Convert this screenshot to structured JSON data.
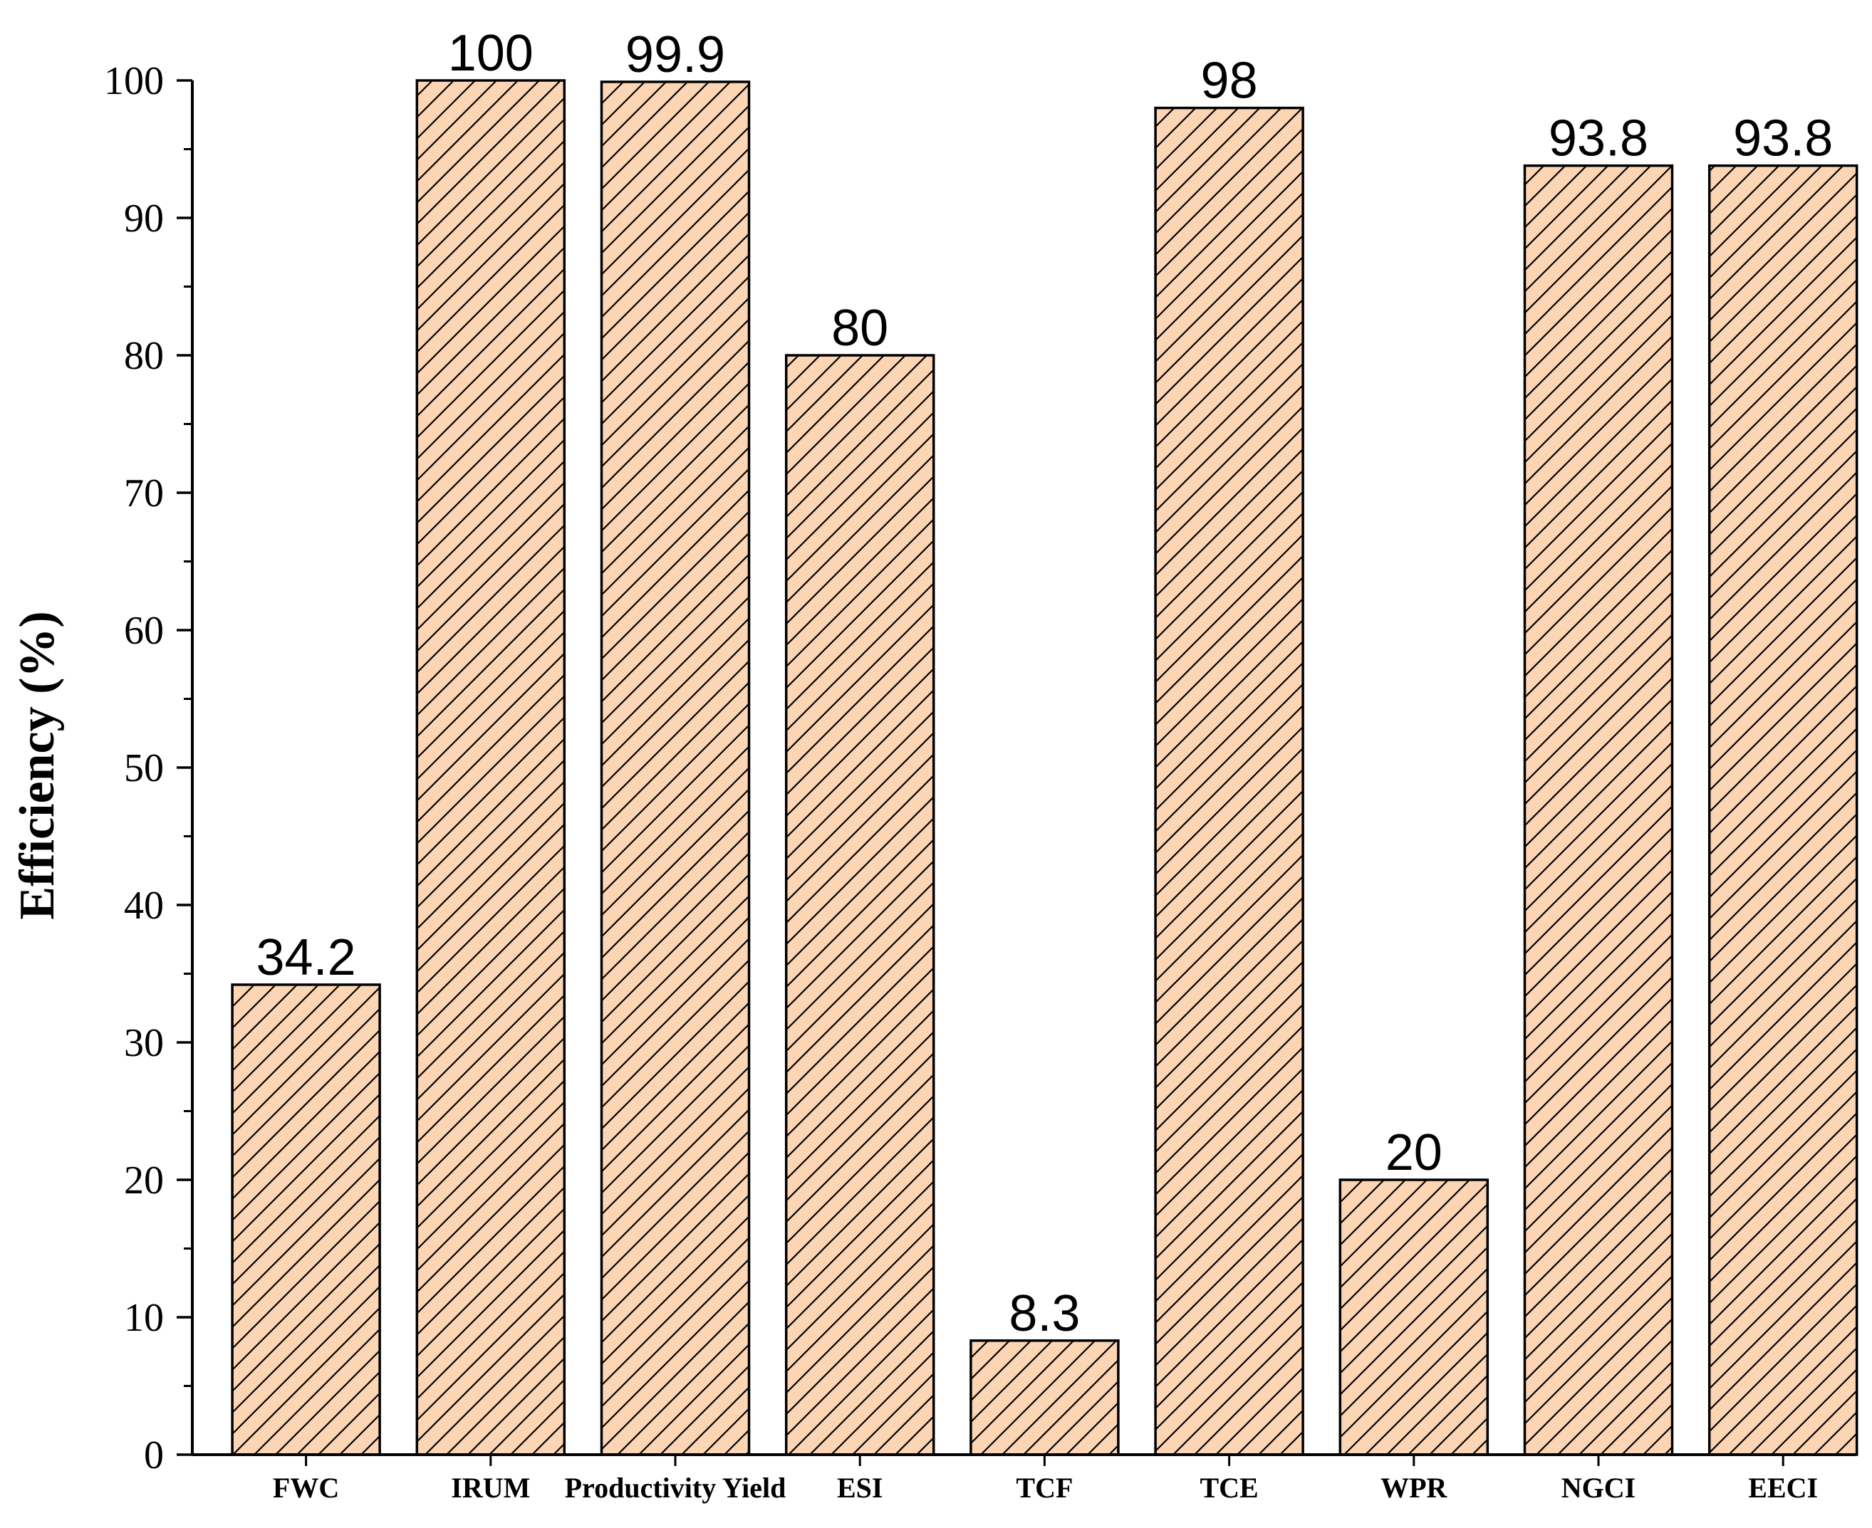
{
  "chart_data": {
    "type": "bar",
    "title": "",
    "xlabel": "",
    "ylabel": "Efficiency (%)",
    "ylim": [
      0,
      100
    ],
    "yticks": [
      0,
      10,
      20,
      30,
      40,
      50,
      60,
      70,
      80,
      90,
      100
    ],
    "categories": [
      "FWC",
      "IRUM",
      "Productivity Yield",
      "ESI",
      "TCF",
      "TCE",
      "WPR",
      "NGCI",
      "EECI"
    ],
    "values": [
      34.2,
      100,
      99.9,
      80,
      8.3,
      98,
      20,
      93.8,
      93.8
    ],
    "data_labels": [
      "34.2",
      "100",
      "99.9",
      "80",
      "8.3",
      "98",
      "20",
      "93.8",
      "93.8"
    ],
    "bar_fill": "#fcd5b5",
    "bar_stroke": "#000000",
    "bar_pattern": "diagonal-hatch",
    "grid": false,
    "legend": "none"
  }
}
